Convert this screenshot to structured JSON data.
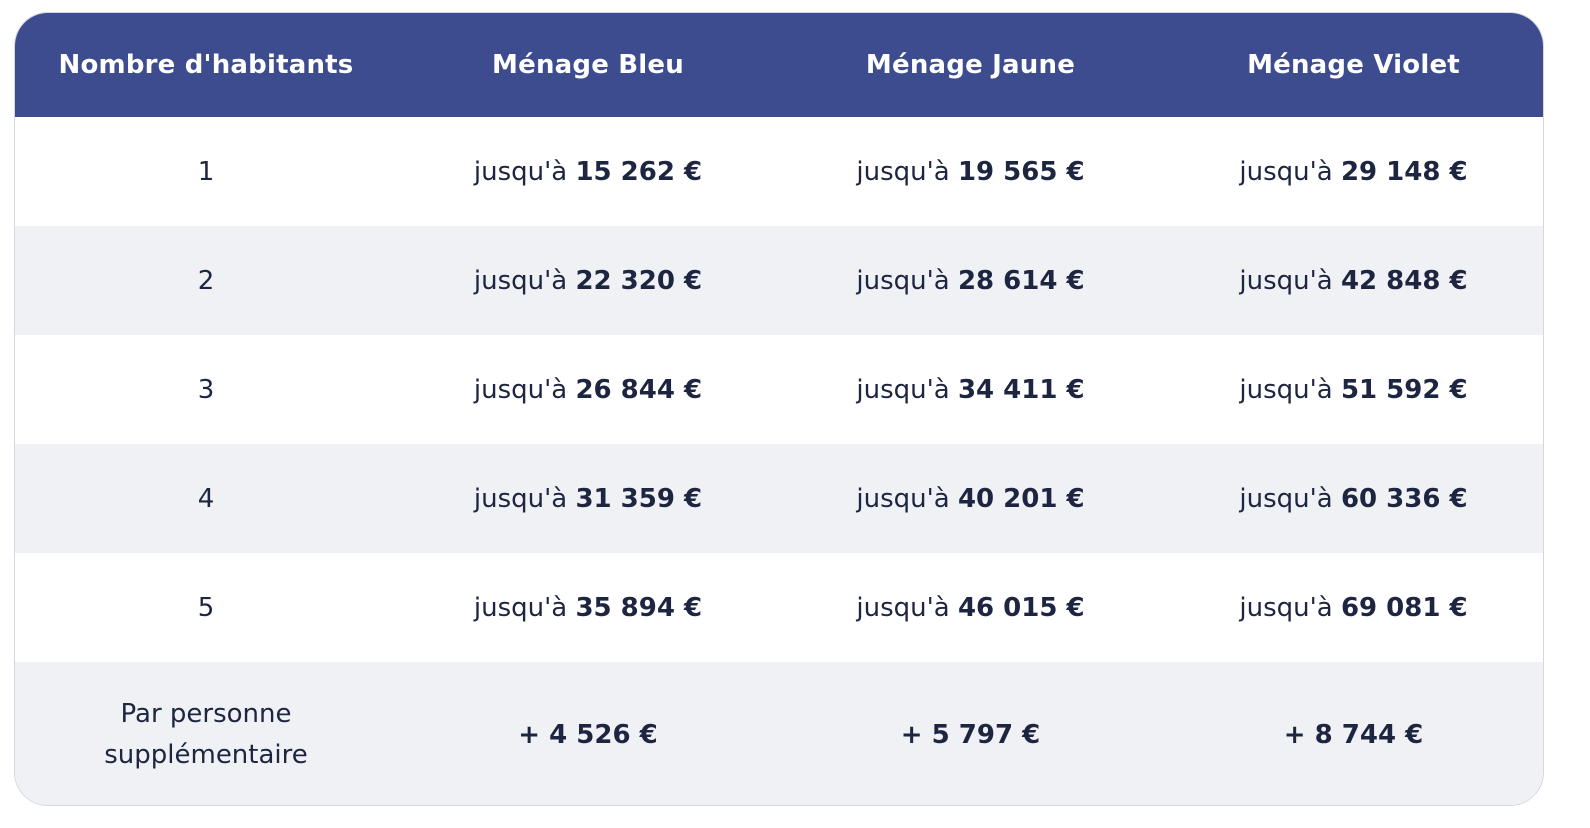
{
  "headers": [
    "Nombre d'habitants",
    "Ménage Bleu",
    "Ménage Jaune",
    "Ménage Violet"
  ],
  "prefix": "jusqu'à",
  "rows": [
    {
      "count": "1",
      "bleu": "15 262 €",
      "jaune": "19 565 €",
      "violet": "29 148 €"
    },
    {
      "count": "2",
      "bleu": "22 320 €",
      "jaune": "28 614 €",
      "violet": "42 848 €"
    },
    {
      "count": "3",
      "bleu": "26 844 €",
      "jaune": "34 411 €",
      "violet": "51 592 €"
    },
    {
      "count": "4",
      "bleu": "31 359 €",
      "jaune": "40 201 €",
      "violet": "60 336 €"
    },
    {
      "count": "5",
      "bleu": "35 894 €",
      "jaune": "46 015 €",
      "violet": "69 081 €"
    }
  ],
  "extra": {
    "label_line1": "Par personne",
    "label_line2": "supplémentaire",
    "bleu": "+ 4 526 €",
    "jaune": "+ 5 797 €",
    "violet": "+ 8 744 €"
  },
  "colors": {
    "header_bg": "#3d4b8f",
    "row_alt_bg": "#eff1f5",
    "text": "#1d2540"
  }
}
